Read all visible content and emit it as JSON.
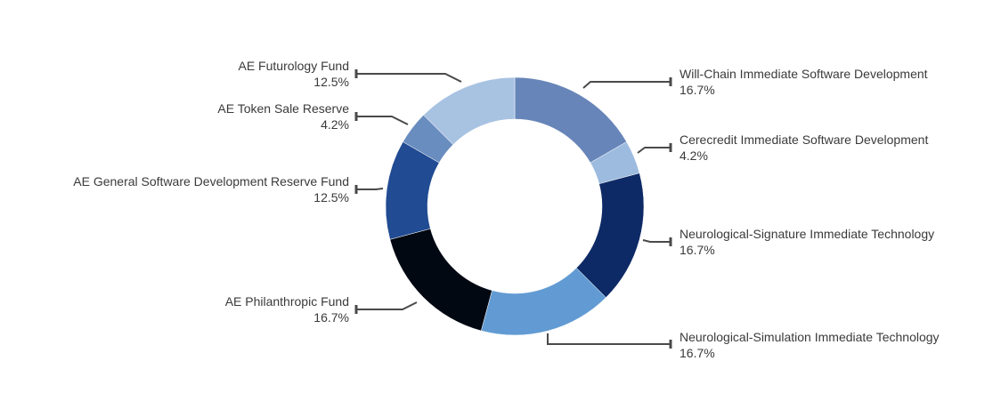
{
  "chart_data": {
    "type": "pie",
    "variant": "donut",
    "title": "",
    "legend": "none",
    "slices": [
      {
        "label": "Will-Chain Immediate Software Development",
        "value": 16.7,
        "display": "16.7%",
        "color": "#6785b8",
        "side": "right"
      },
      {
        "label": "Cerecredit Immediate Software Development",
        "value": 4.2,
        "display": "4.2%",
        "color": "#9dbbdf",
        "side": "right"
      },
      {
        "label": "Neurological-Signature Immediate Technology",
        "value": 16.7,
        "display": "16.7%",
        "color": "#0e2a66",
        "side": "right"
      },
      {
        "label": "Neurological-Simulation Immediate Technology",
        "value": 16.7,
        "display": "16.7%",
        "color": "#629bd3",
        "side": "right"
      },
      {
        "label": "AE Philanthropic Fund",
        "value": 16.7,
        "display": "16.7%",
        "color": "#020812",
        "side": "left"
      },
      {
        "label": "AE General Software Development Reserve Fund",
        "value": 12.5,
        "display": "12.5%",
        "color": "#214b92",
        "side": "left"
      },
      {
        "label": "AE Token Sale Reserve",
        "value": 4.2,
        "display": "4.2%",
        "color": "#6a8dc0",
        "side": "left"
      },
      {
        "label": "AE Futurology Fund",
        "value": 12.5,
        "display": "12.5%",
        "color": "#a8c2e2",
        "side": "left"
      }
    ]
  }
}
